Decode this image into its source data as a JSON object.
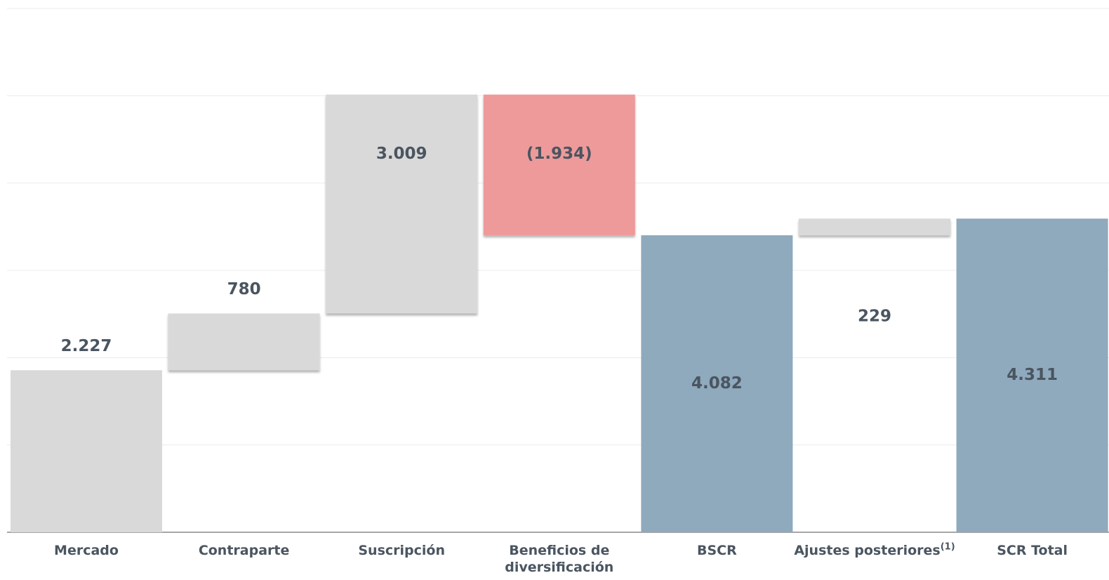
{
  "chart_data": {
    "type": "waterfall",
    "categories": [
      "Mercado",
      "Contraparte",
      "Suscripción",
      "Beneficios de diversificación",
      "BSCR",
      "Ajustes posteriores",
      "SCR Total"
    ],
    "footnote": "(1)",
    "values": [
      2227,
      780,
      3009,
      -1934,
      4082,
      229,
      4311
    ],
    "value_labels": [
      "2.227",
      "780",
      "3.009",
      "(1.934)",
      "4.082",
      "229",
      "4.311"
    ],
    "is_total": [
      false,
      false,
      false,
      false,
      true,
      false,
      true
    ],
    "colors": [
      "#d9d9d9",
      "#d9d9d9",
      "#d9d9d9",
      "#ee9a9a",
      "#8fa9bd",
      "#d9d9d9",
      "#8fa9bd"
    ],
    "ylim": [
      0,
      7200
    ],
    "yticks": [
      0,
      1200,
      2400,
      3600,
      4800,
      6000,
      7200
    ],
    "grid": true
  }
}
